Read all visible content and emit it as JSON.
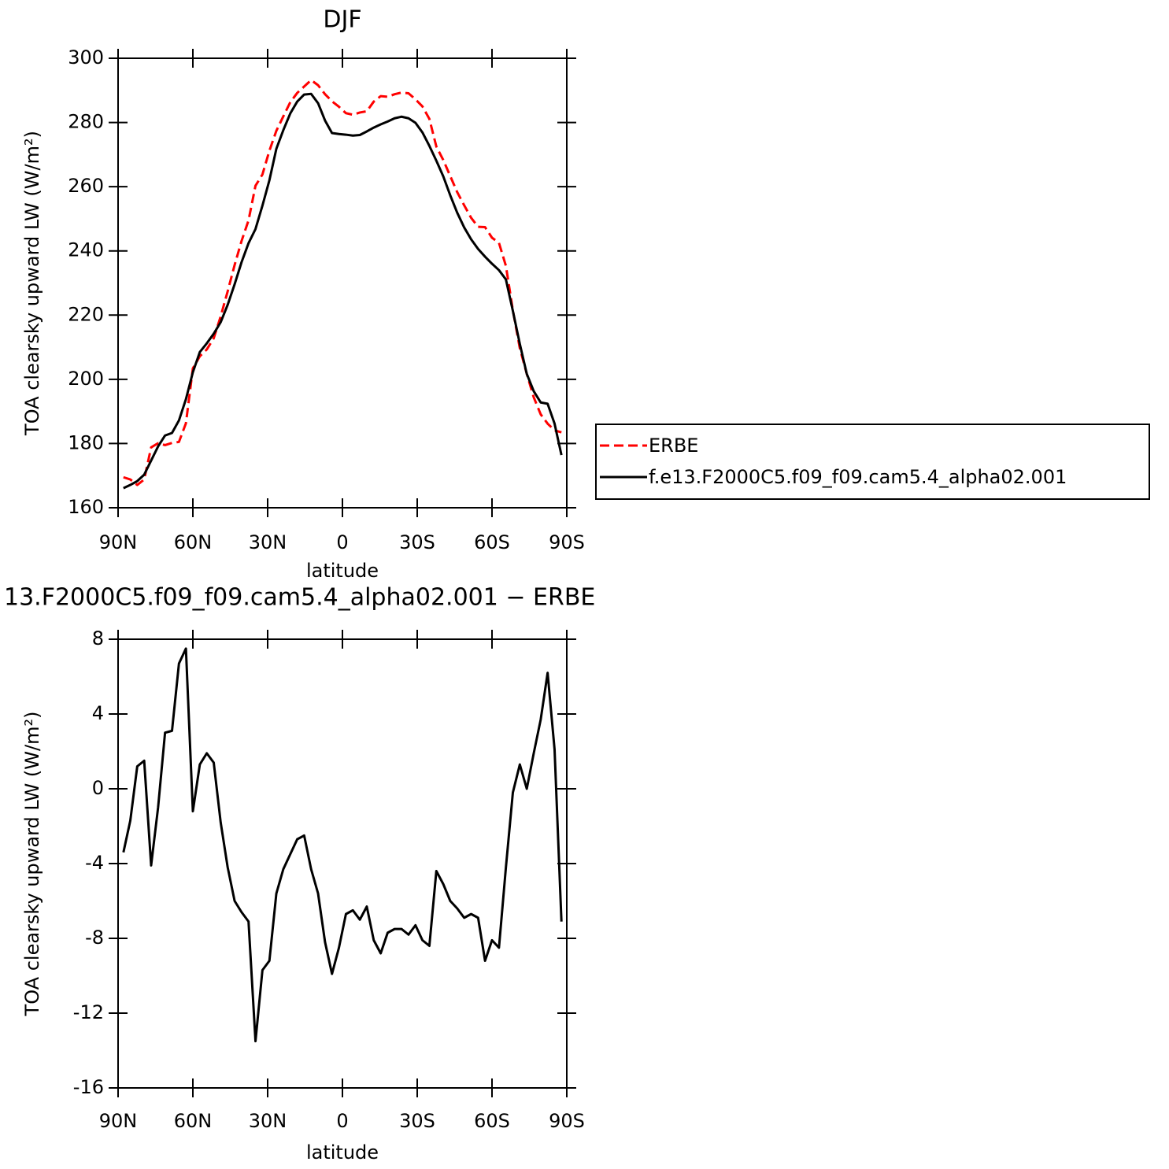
{
  "chart_data": [
    {
      "type": "line",
      "title": "DJF",
      "xlabel": "latitude",
      "ylabel": "TOA clearsky upward LW (W/m²)",
      "x": [
        87.86,
        85.1,
        82.31,
        79.53,
        76.74,
        73.95,
        71.16,
        68.37,
        65.58,
        62.79,
        60.0,
        57.21,
        54.42,
        51.63,
        48.84,
        46.04,
        43.25,
        40.46,
        37.67,
        34.88,
        32.09,
        29.3,
        26.51,
        23.72,
        20.93,
        18.14,
        15.35,
        12.56,
        9.77,
        6.98,
        4.19,
        1.4,
        -1.4,
        -4.19,
        -6.98,
        -9.77,
        -12.56,
        -15.35,
        -18.14,
        -20.93,
        -23.72,
        -26.51,
        -29.3,
        -32.09,
        -34.88,
        -37.67,
        -40.46,
        -43.25,
        -46.04,
        -48.84,
        -51.63,
        -54.42,
        -57.21,
        -60.0,
        -62.79,
        -65.58,
        -68.37,
        -71.16,
        -73.95,
        -76.74,
        -79.53,
        -82.31,
        -85.1,
        -87.86
      ],
      "series": [
        {
          "name": "ERBE",
          "color": "#ff0000",
          "style": "dashed",
          "values": [
            169.5,
            168.8,
            167.1,
            168.8,
            178.8,
            180.1,
            179.5,
            180.2,
            180.5,
            186.3,
            203.4,
            207.2,
            209.3,
            212.8,
            219.6,
            227.4,
            235.6,
            243.1,
            249.5,
            260.3,
            263.8,
            271.2,
            277.4,
            281.9,
            286.3,
            289.2,
            291.2,
            293.2,
            291.6,
            288.8,
            286.6,
            284.9,
            282.9,
            282.4,
            283.1,
            283.5,
            286.5,
            288.2,
            288.0,
            288.8,
            289.3,
            289.1,
            287.2,
            285.0,
            281.1,
            272.5,
            268.3,
            263.3,
            258.3,
            254.2,
            250.3,
            247.5,
            247.4,
            244.1,
            242.5,
            235.3,
            221.5,
            209.7,
            201.7,
            194.4,
            189.1,
            186.2,
            184.1,
            183.5
          ]
        },
        {
          "name": "f.e13.F2000C5.f09_f09.cam5.4_alpha02.001",
          "color": "#000000",
          "style": "solid",
          "values": [
            166.1,
            167.1,
            168.3,
            170.3,
            174.7,
            179.1,
            182.5,
            183.3,
            187.2,
            193.8,
            202.2,
            208.5,
            211.2,
            214.2,
            217.8,
            223.2,
            229.6,
            236.5,
            242.4,
            246.8,
            254.1,
            262.0,
            271.8,
            277.6,
            282.8,
            286.5,
            288.7,
            288.9,
            286.0,
            280.6,
            276.7,
            276.4,
            276.2,
            275.9,
            276.1,
            277.2,
            278.4,
            279.4,
            280.3,
            281.3,
            281.8,
            281.3,
            279.9,
            276.9,
            272.7,
            268.1,
            263.2,
            257.3,
            251.9,
            247.3,
            243.6,
            240.6,
            238.2,
            236.0,
            234.0,
            231.1,
            221.3,
            211.0,
            201.7,
            196.3,
            192.8,
            192.4,
            186.2,
            176.4
          ]
        }
      ],
      "xlim": [
        90,
        -90
      ],
      "xticks": [
        {
          "value": 90,
          "label": "90N"
        },
        {
          "value": 60,
          "label": "60N"
        },
        {
          "value": 30,
          "label": "30N"
        },
        0,
        {
          "value": -30,
          "label": "30S"
        },
        {
          "value": -60,
          "label": "60S"
        },
        {
          "value": -90,
          "label": "90S"
        }
      ],
      "ylim": [
        160,
        300
      ],
      "yticks": [
        160,
        180,
        200,
        220,
        240,
        260,
        280,
        300
      ],
      "legend": "outside-right"
    },
    {
      "type": "line",
      "title": "13.F2000C5.f09_f09.cam5.4_alpha02.001 − ERBE",
      "xlabel": "latitude",
      "ylabel": "TOA clearsky upward LW (W/m²)",
      "x": [
        87.86,
        85.1,
        82.31,
        79.53,
        76.74,
        73.95,
        71.16,
        68.37,
        65.58,
        62.79,
        60.0,
        57.21,
        54.42,
        51.63,
        48.84,
        46.04,
        43.25,
        40.46,
        37.67,
        34.88,
        32.09,
        29.3,
        26.51,
        23.72,
        20.93,
        18.14,
        15.35,
        12.56,
        9.77,
        6.98,
        4.19,
        1.4,
        -1.4,
        -4.19,
        -6.98,
        -9.77,
        -12.56,
        -15.35,
        -18.14,
        -20.93,
        -23.72,
        -26.51,
        -29.3,
        -32.09,
        -34.88,
        -37.67,
        -40.46,
        -43.25,
        -46.04,
        -48.84,
        -51.63,
        -54.42,
        -57.21,
        -60.0,
        -62.79,
        -65.58,
        -68.37,
        -71.16,
        -73.95,
        -76.74,
        -79.53,
        -82.31,
        -85.1,
        -87.86
      ],
      "values": [
        -3.4,
        -1.7,
        1.2,
        1.5,
        -4.1,
        -1.0,
        3.0,
        3.1,
        6.7,
        7.5,
        -1.2,
        1.3,
        1.9,
        1.4,
        -1.8,
        -4.2,
        -6.0,
        -6.6,
        -7.1,
        -13.5,
        -9.7,
        -9.2,
        -5.6,
        -4.3,
        -3.5,
        -2.7,
        -2.5,
        -4.3,
        -5.6,
        -8.2,
        -9.9,
        -8.5,
        -6.7,
        -6.5,
        -7.0,
        -6.3,
        -8.1,
        -8.8,
        -7.7,
        -7.5,
        -7.5,
        -7.8,
        -7.3,
        -8.1,
        -8.4,
        -4.4,
        -5.1,
        -6.0,
        -6.4,
        -6.9,
        -6.7,
        -6.9,
        -9.2,
        -8.1,
        -8.5,
        -4.2,
        -0.2,
        1.3,
        0.0,
        1.9,
        3.7,
        6.2,
        2.1,
        -7.1
      ],
      "color": "#000000",
      "xlim": [
        90,
        -90
      ],
      "xticks": [
        {
          "value": 90,
          "label": "90N"
        },
        {
          "value": 60,
          "label": "60N"
        },
        {
          "value": 30,
          "label": "30N"
        },
        0,
        {
          "value": -30,
          "label": "30S"
        },
        {
          "value": -60,
          "label": "60S"
        },
        {
          "value": -90,
          "label": "90S"
        }
      ],
      "ylim": [
        -16,
        8
      ],
      "yticks": [
        -16,
        -12,
        -8,
        -4,
        0,
        4,
        8
      ]
    }
  ]
}
